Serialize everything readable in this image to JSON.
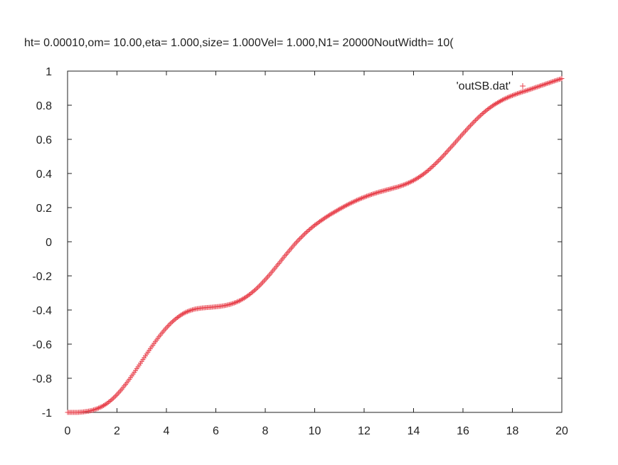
{
  "chart_data": {
    "type": "scatter",
    "title": "ht= 0.00010,om= 10.00,eta= 1.000,size= 1.000Vel= 1.000,N1=   20000NoutWidth=  10(",
    "xlabel": "",
    "ylabel": "",
    "xlim": [
      0,
      20
    ],
    "ylim": [
      -1,
      1
    ],
    "xticks": [
      "0",
      "2",
      "4",
      "6",
      "8",
      "10",
      "12",
      "14",
      "16",
      "18",
      "20"
    ],
    "yticks": [
      "1",
      "0.8",
      "0.6",
      "0.4",
      "0.2",
      "0",
      "-0.2",
      "-0.4",
      "-0.6",
      "-0.8",
      "-1"
    ],
    "grid": false,
    "legend_position": "top-right",
    "series": [
      {
        "name": "'outSB.dat'",
        "marker": "+",
        "color": "#e8424d",
        "x": [
          0,
          0.2,
          0.4,
          0.6,
          0.8,
          1.0,
          1.2,
          1.4,
          1.6,
          1.8,
          2.0,
          2.2,
          2.4,
          2.6,
          2.8,
          3.0,
          3.2,
          3.4,
          3.6,
          3.8,
          4.0,
          4.2,
          4.4,
          4.6,
          4.8,
          5.0,
          5.2,
          5.4,
          5.6,
          5.8,
          6.0,
          6.2,
          6.4,
          6.6,
          6.8,
          7.0,
          7.2,
          7.4,
          7.6,
          7.8,
          8.0,
          8.2,
          8.4,
          8.6,
          8.8,
          9.0,
          9.2,
          9.4,
          9.6,
          9.8,
          10.0,
          10.2,
          10.4,
          10.6,
          10.8,
          11.0,
          11.2,
          11.4,
          11.6,
          11.8,
          12.0,
          12.2,
          12.4,
          12.6,
          12.8,
          13.0,
          13.2,
          13.4,
          13.6,
          13.8,
          14.0,
          14.2,
          14.4,
          14.6,
          14.8,
          15.0,
          15.2,
          15.4,
          15.6,
          15.8,
          16.0,
          16.2,
          16.4,
          16.6,
          16.8,
          17.0,
          17.2,
          17.4,
          17.6,
          17.8,
          18.0,
          18.2,
          18.4,
          18.6,
          18.8,
          19.0,
          19.2,
          19.4,
          19.6,
          19.8,
          20.0
        ],
        "y": [
          -1.0,
          -1.0,
          -1.0,
          -0.998,
          -0.994,
          -0.988,
          -0.978,
          -0.965,
          -0.947,
          -0.924,
          -0.896,
          -0.863,
          -0.826,
          -0.786,
          -0.744,
          -0.701,
          -0.658,
          -0.616,
          -0.576,
          -0.538,
          -0.504,
          -0.474,
          -0.449,
          -0.428,
          -0.412,
          -0.401,
          -0.393,
          -0.389,
          -0.386,
          -0.384,
          -0.381,
          -0.378,
          -0.373,
          -0.366,
          -0.356,
          -0.343,
          -0.326,
          -0.305,
          -0.281,
          -0.253,
          -0.222,
          -0.189,
          -0.154,
          -0.118,
          -0.082,
          -0.047,
          -0.013,
          0.018,
          0.047,
          0.073,
          0.097,
          0.118,
          0.138,
          0.157,
          0.174,
          0.191,
          0.207,
          0.222,
          0.236,
          0.249,
          0.261,
          0.272,
          0.282,
          0.291,
          0.299,
          0.307,
          0.315,
          0.323,
          0.333,
          0.345,
          0.359,
          0.376,
          0.396,
          0.419,
          0.445,
          0.473,
          0.503,
          0.535,
          0.567,
          0.6,
          0.633,
          0.665,
          0.696,
          0.725,
          0.752,
          0.776,
          0.797,
          0.815,
          0.831,
          0.845,
          0.857,
          0.868,
          0.878,
          0.887,
          0.897,
          0.907,
          0.917,
          0.927,
          0.937,
          0.947,
          0.956
        ]
      }
    ]
  }
}
